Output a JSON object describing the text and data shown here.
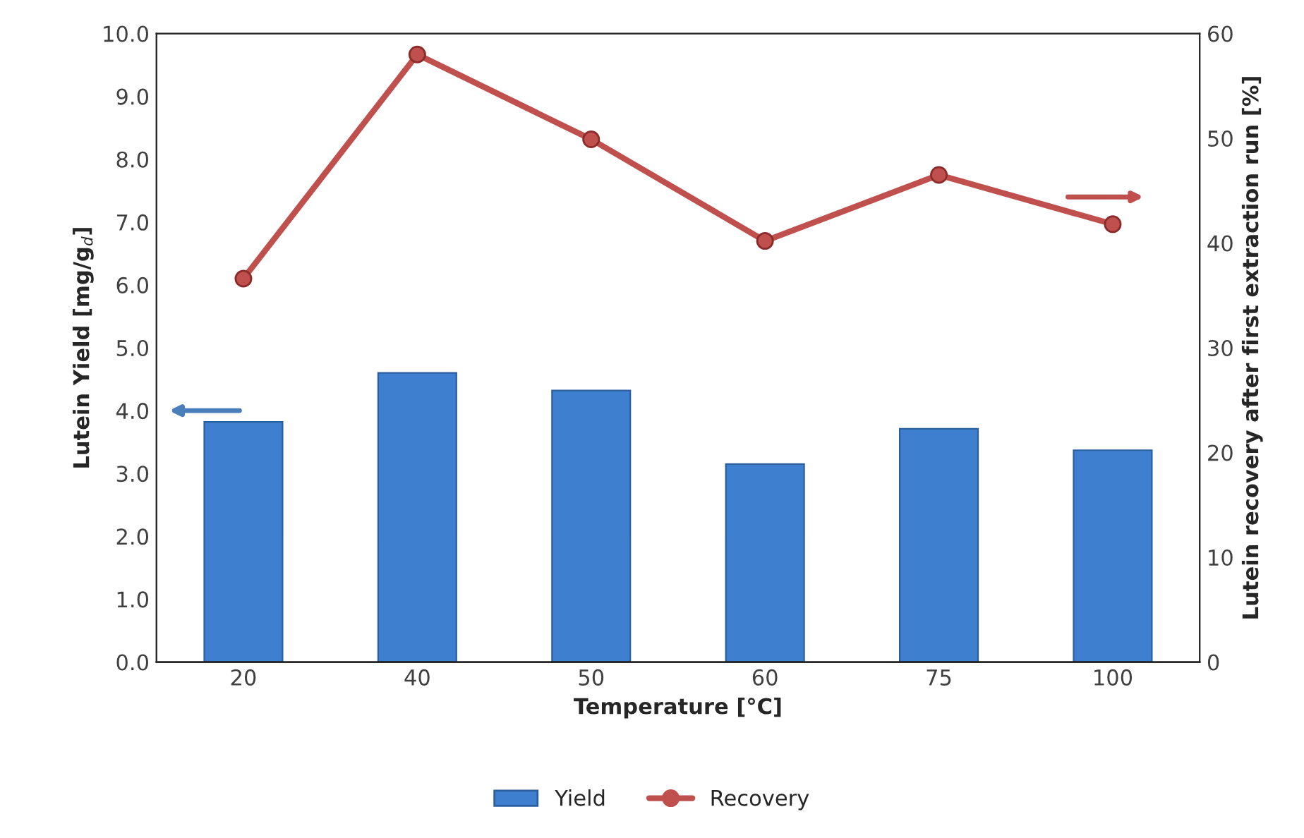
{
  "chart_data": {
    "type": "bar",
    "xlabel": "Temperature [°C]",
    "ylabel": "Lutein Yield [mg/g$_{d}$]",
    "y2label": "Lutein recovery after first extraction run [%]",
    "categories": [
      "20",
      "40",
      "50",
      "60",
      "75",
      "100"
    ],
    "series": [
      {
        "name": "Yield",
        "color": "#3f7fcf",
        "values": [
          3.82,
          4.6,
          4.32,
          3.15,
          3.71,
          3.37
        ]
      },
      {
        "name": "Recovery",
        "type": "line",
        "axis": "y2",
        "color": "#c0504d",
        "marker": "circle",
        "values": [
          36.6,
          58.0,
          49.9,
          40.2,
          46.5,
          41.8
        ]
      }
    ],
    "ylim": [
      0,
      10
    ],
    "yticks": [
      {
        "value": 0,
        "label": "0.0"
      },
      {
        "value": 1,
        "label": "1.0"
      },
      {
        "value": 2,
        "label": "2.0"
      },
      {
        "value": 3,
        "label": "3.0"
      },
      {
        "value": 4,
        "label": "4.0"
      },
      {
        "value": 5,
        "label": "5.0"
      },
      {
        "value": 6,
        "label": "6.0"
      },
      {
        "value": 7,
        "label": "7.0"
      },
      {
        "value": 8,
        "label": "8.0"
      },
      {
        "value": 9,
        "label": "9.0"
      },
      {
        "value": 10,
        "label": "10.0"
      }
    ],
    "y2lim": [
      0,
      60
    ],
    "y2ticks": [
      0,
      10,
      20,
      30,
      40,
      50,
      60
    ],
    "grid": false,
    "legend": "bottom"
  }
}
